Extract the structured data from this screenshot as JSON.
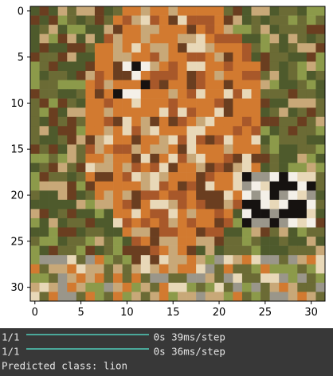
{
  "plot": {
    "image_grid_size": [
      32,
      32
    ],
    "x_ticks": [
      "0",
      "5",
      "10",
      "15",
      "20",
      "25",
      "30"
    ],
    "y_ticks": [
      "0",
      "5",
      "10",
      "15",
      "20",
      "25",
      "30"
    ],
    "tick_values": [
      0,
      5,
      10,
      15,
      20,
      25,
      30
    ],
    "axis_range": [
      -0.5,
      31.5
    ],
    "palette": {
      "grass_dark": "#4e5a2c",
      "grass_light": "#8c9a4a",
      "olive": "#6b6b35",
      "tan": "#c8a878",
      "cream": "#e8d8b8",
      "orange": "#d27a30",
      "rust": "#a8582a",
      "brown": "#6a3e20",
      "black": "#161210",
      "white": "#f4f0e8",
      "gray": "#9a968a"
    }
  },
  "console": {
    "lines": [
      {
        "step": "1/1",
        "time": "0s 39ms/step"
      },
      {
        "step": "1/1",
        "time": "0s 36ms/step"
      }
    ],
    "bar_color": "#4aa89a",
    "prediction": "Predicted class: lion"
  }
}
